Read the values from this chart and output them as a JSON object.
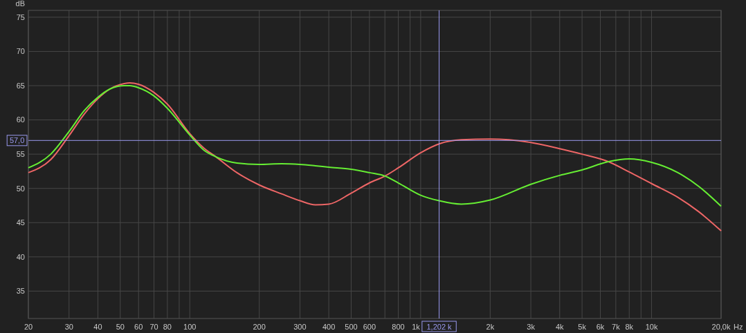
{
  "chart_data": {
    "type": "line",
    "xlabel": "Hz",
    "ylabel": "dB",
    "log": "x",
    "grid": true,
    "x": [
      20,
      25,
      30,
      35,
      40,
      45,
      52,
      55,
      60,
      70,
      80,
      100,
      115,
      130,
      160,
      200,
      250,
      300,
      350,
      400,
      500,
      600,
      700,
      800,
      1000,
      1202,
      1500,
      2000,
      3000,
      4000,
      5000,
      6500,
      8000,
      10000,
      13000,
      16000,
      20000
    ],
    "series": [
      {
        "color": "#ee6666",
        "values": [
          52.3,
          54.2,
          57.7,
          60.9,
          63.1,
          64.5,
          65.3,
          65.4,
          65.2,
          64.0,
          62.3,
          58.0,
          55.9,
          54.6,
          52.3,
          50.5,
          49.2,
          48.2,
          47.6,
          47.7,
          49.3,
          50.8,
          51.8,
          53.0,
          55.2,
          56.5,
          57.1,
          57.2,
          56.7,
          55.8,
          55.0,
          53.9,
          52.4,
          50.7,
          48.7,
          46.6,
          43.8
        ]
      },
      {
        "color": "#66ee33",
        "values": [
          53.0,
          55.0,
          58.3,
          61.4,
          63.3,
          64.5,
          65.0,
          65.0,
          64.7,
          63.5,
          61.7,
          57.8,
          55.6,
          54.6,
          53.7,
          53.5,
          53.6,
          53.5,
          53.3,
          53.1,
          52.8,
          52.3,
          51.8,
          50.8,
          49.0,
          48.2,
          47.7,
          48.3,
          50.6,
          51.9,
          52.7,
          53.9,
          54.3,
          53.8,
          52.3,
          50.3,
          47.4
        ]
      }
    ],
    "xlim": [
      20,
      20000
    ],
    "ylim": [
      31,
      76
    ],
    "xticks": [
      20,
      30,
      40,
      50,
      60,
      70,
      80,
      {
        "value": 90,
        "label": null
      },
      100,
      200,
      300,
      400,
      500,
      600,
      {
        "value": 700,
        "label": null
      },
      800,
      {
        "value": 900,
        "label": null
      },
      {
        "value": 1000,
        "label": "1k"
      },
      {
        "value": 2000,
        "label": "2k"
      },
      {
        "value": 3000,
        "label": "3k"
      },
      {
        "value": 4000,
        "label": "4k"
      },
      {
        "value": 5000,
        "label": "5k"
      },
      {
        "value": 6000,
        "label": "6k"
      },
      {
        "value": 7000,
        "label": "7k"
      },
      {
        "value": 8000,
        "label": "8k"
      },
      {
        "value": 9000,
        "label": null
      },
      {
        "value": 10000,
        "label": "10k"
      },
      {
        "value": 20000,
        "label": "20,0k"
      }
    ],
    "yticks": [
      35,
      40,
      45,
      50,
      55,
      60,
      65,
      70,
      75
    ],
    "ref_lines": [
      {
        "axis": "x",
        "value": 1202,
        "label": "1,202 k",
        "color": "#9a9af0"
      },
      {
        "axis": "y",
        "value": 57,
        "label": "57,0",
        "color": "#9a9af0"
      }
    ]
  }
}
